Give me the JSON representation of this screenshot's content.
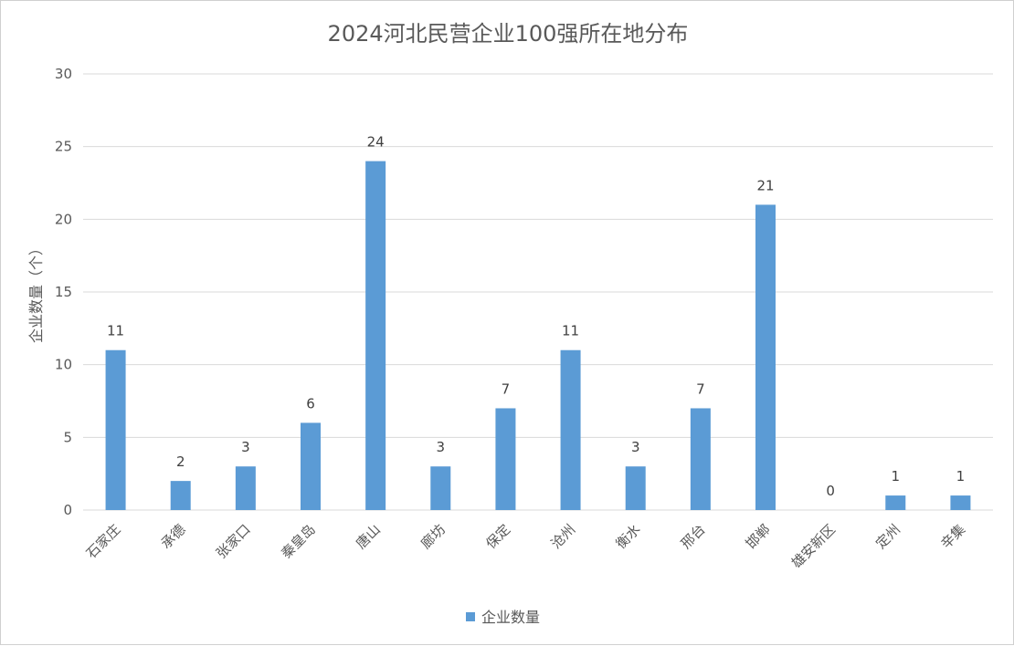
{
  "chart_data": {
    "type": "bar",
    "title": "2024河北民营企业100强所在地分布",
    "xlabel": "",
    "ylabel": "企业数量（个）",
    "ylim": [
      0,
      30
    ],
    "yticks": [
      0,
      5,
      10,
      15,
      20,
      25,
      30
    ],
    "grid": true,
    "legend_position": "bottom",
    "categories": [
      "石家庄",
      "承德",
      "张家口",
      "秦皇岛",
      "唐山",
      "廊坊",
      "保定",
      "沧州",
      "衡水",
      "邢台",
      "邯郸",
      "雄安新区",
      "定州",
      "辛集"
    ],
    "series": [
      {
        "name": "企业数量",
        "color": "#5b9bd5",
        "values": [
          11,
          2,
          3,
          6,
          24,
          3,
          7,
          11,
          3,
          7,
          21,
          0,
          1,
          1
        ]
      }
    ]
  }
}
